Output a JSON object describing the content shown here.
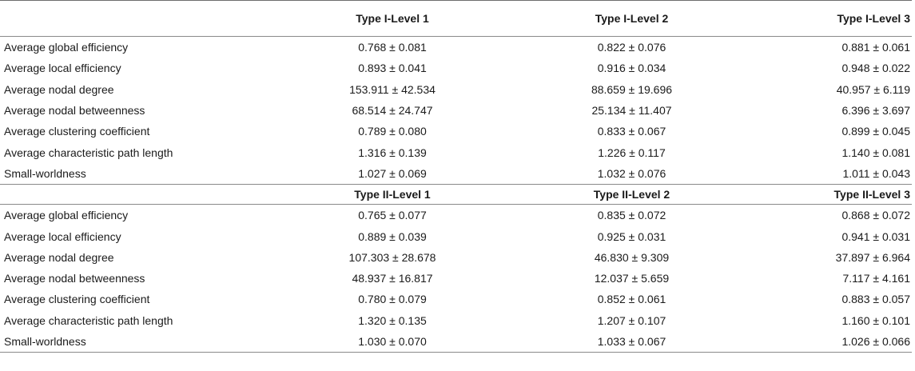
{
  "section_1": {
    "headers": [
      "",
      "Type I-Level 1",
      "Type I-Level 2",
      "Type I-Level 3"
    ],
    "rows": [
      {
        "label": "Average global efficiency",
        "values": [
          "0.768 ± 0.081",
          "0.822 ± 0.076",
          "0.881 ± 0.061"
        ]
      },
      {
        "label": "Average local efficiency",
        "values": [
          "0.893 ± 0.041",
          "0.916 ± 0.034",
          "0.948 ± 0.022"
        ]
      },
      {
        "label": "Average nodal degree",
        "values": [
          "153.911 ± 42.534",
          "88.659 ± 19.696",
          "40.957 ± 6.119"
        ]
      },
      {
        "label": "Average nodal betweenness",
        "values": [
          "68.514 ± 24.747",
          "25.134 ± 11.407",
          "6.396 ± 3.697"
        ]
      },
      {
        "label": "Average clustering coefficient",
        "values": [
          "0.789 ± 0.080",
          "0.833 ± 0.067",
          "0.899 ± 0.045"
        ]
      },
      {
        "label": "Average characteristic path length",
        "values": [
          "1.316 ± 0.139",
          "1.226 ± 0.117",
          "1.140 ± 0.081"
        ]
      },
      {
        "label": "Small-worldness",
        "values": [
          "1.027 ± 0.069",
          "1.032 ± 0.076",
          "1.011 ± 0.043"
        ]
      }
    ]
  },
  "section_2": {
    "headers": [
      "",
      "Type II-Level 1",
      "Type II-Level 2",
      "Type II-Level 3"
    ],
    "rows": [
      {
        "label": "Average global efficiency",
        "values": [
          "0.765 ± 0.077",
          "0.835 ± 0.072",
          "0.868 ± 0.072"
        ]
      },
      {
        "label": "Average local efficiency",
        "values": [
          "0.889 ± 0.039",
          "0.925 ± 0.031",
          "0.941 ± 0.031"
        ]
      },
      {
        "label": "Average nodal degree",
        "values": [
          "107.303 ± 28.678",
          "46.830 ± 9.309",
          "37.897 ± 6.964"
        ]
      },
      {
        "label": "Average nodal betweenness",
        "values": [
          "48.937 ± 16.817",
          "12.037 ± 5.659",
          "7.117 ± 4.161"
        ]
      },
      {
        "label": "Average clustering coefficient",
        "values": [
          "0.780 ± 0.079",
          "0.852 ± 0.061",
          "0.883 ± 0.057"
        ]
      },
      {
        "label": "Average characteristic path length",
        "values": [
          "1.320 ± 0.135",
          "1.207 ± 0.107",
          "1.160 ± 0.101"
        ]
      },
      {
        "label": "Small-worldness",
        "values": [
          "1.030 ± 0.070",
          "1.033 ± 0.067",
          "1.026 ± 0.066"
        ]
      }
    ]
  }
}
